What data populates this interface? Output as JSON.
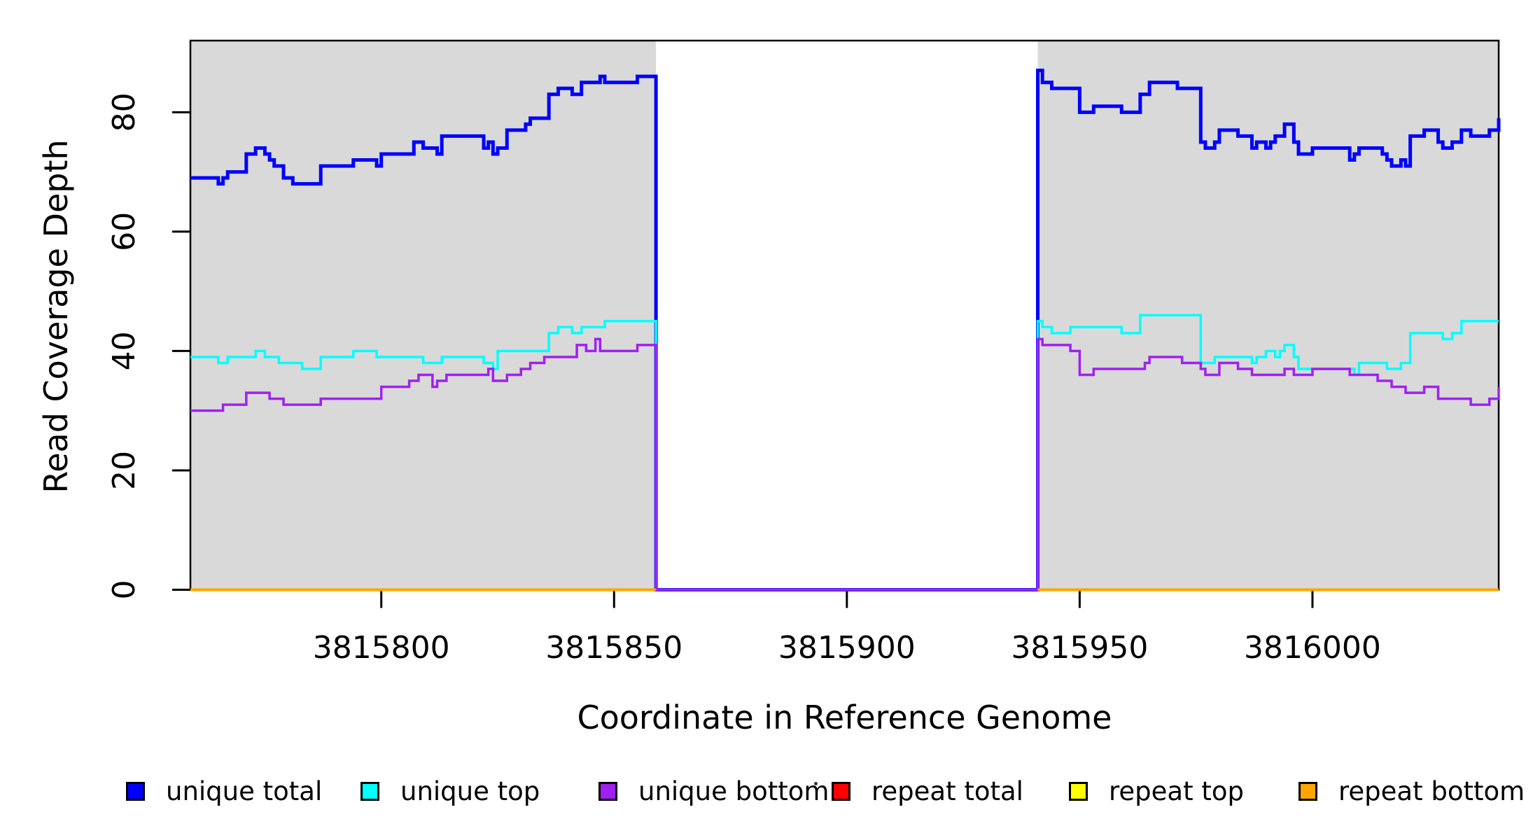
{
  "chart_data": {
    "type": "line",
    "subtype": "step-coverage",
    "title": "",
    "xlabel": "Coordinate in Reference Genome",
    "ylabel": "Read Coverage Depth",
    "xlim": [
      3815759,
      3816040
    ],
    "ylim": [
      0,
      92
    ],
    "xticks": [
      3815800,
      3815850,
      3815900,
      3815950,
      3816000
    ],
    "yticks": [
      0,
      20,
      40,
      60,
      80
    ],
    "grid": false,
    "shaded_region_fill": "#d9d9d9",
    "shaded_regions": [
      [
        3815759,
        3815859
      ],
      [
        3815941,
        3816040
      ]
    ],
    "gap_region": [
      3815859,
      3815941
    ],
    "series": [
      {
        "name": "unique total",
        "color": "#0000ff",
        "linewidth": 5,
        "points": [
          [
            3815759,
            69
          ],
          [
            3815765,
            68
          ],
          [
            3815766,
            69
          ],
          [
            3815767,
            70
          ],
          [
            3815771,
            73
          ],
          [
            3815773,
            74
          ],
          [
            3815775,
            73
          ],
          [
            3815776,
            72
          ],
          [
            3815777,
            71
          ],
          [
            3815779,
            69
          ],
          [
            3815781,
            68
          ],
          [
            3815787,
            71
          ],
          [
            3815794,
            72
          ],
          [
            3815799,
            71
          ],
          [
            3815800,
            73
          ],
          [
            3815807,
            75
          ],
          [
            3815809,
            74
          ],
          [
            3815812,
            73
          ],
          [
            3815813,
            76
          ],
          [
            3815822,
            74
          ],
          [
            3815823,
            75
          ],
          [
            3815824,
            73
          ],
          [
            3815825,
            74
          ],
          [
            3815827,
            77
          ],
          [
            3815831,
            78
          ],
          [
            3815832,
            79
          ],
          [
            3815836,
            83
          ],
          [
            3815838,
            84
          ],
          [
            3815841,
            83
          ],
          [
            3815843,
            85
          ],
          [
            3815847,
            86
          ],
          [
            3815848,
            85
          ],
          [
            3815855,
            86
          ],
          [
            3815859,
            0
          ],
          [
            3815941,
            87
          ],
          [
            3815942,
            85
          ],
          [
            3815944,
            84
          ],
          [
            3815950,
            80
          ],
          [
            3815953,
            81
          ],
          [
            3815959,
            80
          ],
          [
            3815963,
            83
          ],
          [
            3815965,
            85
          ],
          [
            3815971,
            84
          ],
          [
            3815976,
            75
          ],
          [
            3815977,
            74
          ],
          [
            3815979,
            75
          ],
          [
            3815980,
            77
          ],
          [
            3815984,
            76
          ],
          [
            3815987,
            74
          ],
          [
            3815988,
            75
          ],
          [
            3815990,
            74
          ],
          [
            3815991,
            75
          ],
          [
            3815992,
            76
          ],
          [
            3815994,
            78
          ],
          [
            3815996,
            75
          ],
          [
            3815997,
            73
          ],
          [
            3816000,
            74
          ],
          [
            3816008,
            72
          ],
          [
            3816009,
            73
          ],
          [
            3816010,
            74
          ],
          [
            3816015,
            73
          ],
          [
            3816016,
            72
          ],
          [
            3816017,
            71
          ],
          [
            3816019,
            72
          ],
          [
            3816020,
            71
          ],
          [
            3816021,
            76
          ],
          [
            3816024,
            77
          ],
          [
            3816027,
            75
          ],
          [
            3816028,
            74
          ],
          [
            3816030,
            75
          ],
          [
            3816032,
            77
          ],
          [
            3816034,
            76
          ],
          [
            3816038,
            77
          ],
          [
            3816040,
            79
          ]
        ],
        "end_x": 3816040
      },
      {
        "name": "unique top",
        "color": "#00ffff",
        "linewidth": 3.5,
        "points": [
          [
            3815759,
            39
          ],
          [
            3815765,
            38
          ],
          [
            3815767,
            39
          ],
          [
            3815773,
            40
          ],
          [
            3815775,
            39
          ],
          [
            3815778,
            38
          ],
          [
            3815783,
            37
          ],
          [
            3815787,
            39
          ],
          [
            3815794,
            40
          ],
          [
            3815799,
            39
          ],
          [
            3815809,
            38
          ],
          [
            3815813,
            39
          ],
          [
            3815822,
            38
          ],
          [
            3815824,
            37
          ],
          [
            3815825,
            40
          ],
          [
            3815836,
            43
          ],
          [
            3815838,
            44
          ],
          [
            3815841,
            43
          ],
          [
            3815843,
            44
          ],
          [
            3815848,
            45
          ],
          [
            3815859,
            0
          ],
          [
            3815941,
            45
          ],
          [
            3815942,
            44
          ],
          [
            3815944,
            43
          ],
          [
            3815948,
            44
          ],
          [
            3815959,
            43
          ],
          [
            3815963,
            46
          ],
          [
            3815976,
            38
          ],
          [
            3815979,
            39
          ],
          [
            3815987,
            38
          ],
          [
            3815988,
            39
          ],
          [
            3815990,
            40
          ],
          [
            3815992,
            39
          ],
          [
            3815993,
            40
          ],
          [
            3815994,
            41
          ],
          [
            3815996,
            39
          ],
          [
            3815997,
            37
          ],
          [
            3816009,
            36
          ],
          [
            3816010,
            38
          ],
          [
            3816016,
            37
          ],
          [
            3816019,
            38
          ],
          [
            3816021,
            43
          ],
          [
            3816028,
            42
          ],
          [
            3816030,
            43
          ],
          [
            3816032,
            45
          ]
        ],
        "end_x": 3816040
      },
      {
        "name": "unique bottom",
        "color": "#a020f0",
        "linewidth": 3.5,
        "points": [
          [
            3815759,
            30
          ],
          [
            3815766,
            31
          ],
          [
            3815771,
            33
          ],
          [
            3815776,
            32
          ],
          [
            3815779,
            31
          ],
          [
            3815787,
            32
          ],
          [
            3815800,
            34
          ],
          [
            3815806,
            35
          ],
          [
            3815808,
            36
          ],
          [
            3815811,
            34
          ],
          [
            3815812,
            35
          ],
          [
            3815814,
            36
          ],
          [
            3815823,
            37
          ],
          [
            3815824,
            35
          ],
          [
            3815827,
            36
          ],
          [
            3815830,
            37
          ],
          [
            3815832,
            38
          ],
          [
            3815835,
            39
          ],
          [
            3815842,
            41
          ],
          [
            3815844,
            40
          ],
          [
            3815846,
            42
          ],
          [
            3815847,
            40
          ],
          [
            3815855,
            41
          ],
          [
            3815859,
            0
          ],
          [
            3815941,
            42
          ],
          [
            3815942,
            41
          ],
          [
            3815948,
            40
          ],
          [
            3815950,
            36
          ],
          [
            3815953,
            37
          ],
          [
            3815964,
            38
          ],
          [
            3815965,
            39
          ],
          [
            3815972,
            38
          ],
          [
            3815976,
            37
          ],
          [
            3815977,
            36
          ],
          [
            3815980,
            38
          ],
          [
            3815984,
            37
          ],
          [
            3815987,
            36
          ],
          [
            3815994,
            37
          ],
          [
            3815996,
            36
          ],
          [
            3816000,
            37
          ],
          [
            3816008,
            36
          ],
          [
            3816014,
            35
          ],
          [
            3816017,
            34
          ],
          [
            3816020,
            33
          ],
          [
            3816024,
            34
          ],
          [
            3816027,
            32
          ],
          [
            3816034,
            31
          ],
          [
            3816038,
            32
          ],
          [
            3816040,
            34
          ]
        ],
        "end_x": 3816040
      },
      {
        "name": "repeat total",
        "color": "#ff0000",
        "linewidth": 3.5,
        "zero_segments": [
          [
            3815759,
            3815859
          ],
          [
            3815941,
            3816040
          ]
        ]
      },
      {
        "name": "repeat top",
        "color": "#ffff00",
        "linewidth": 3.5,
        "zero_segments": [
          [
            3815759,
            3815859
          ],
          [
            3815941,
            3816040
          ]
        ]
      },
      {
        "name": "repeat bottom",
        "color": "#ffa500",
        "linewidth": 4,
        "zero_segments": [
          [
            3815759,
            3815859
          ],
          [
            3815941,
            3816040
          ]
        ]
      }
    ],
    "legend": {
      "position": "bottom",
      "entries": [
        {
          "label": "unique total",
          "color": "#0000ff"
        },
        {
          "label": "unique top",
          "color": "#00ffff"
        },
        {
          "label": "unique bottom",
          "color": "#a020f0"
        },
        {
          "label": "repeat total",
          "color": "#ff0000"
        },
        {
          "label": "repeat top",
          "color": "#ffff00"
        },
        {
          "label": "repeat bottom",
          "color": "#ffa500"
        }
      ]
    }
  }
}
